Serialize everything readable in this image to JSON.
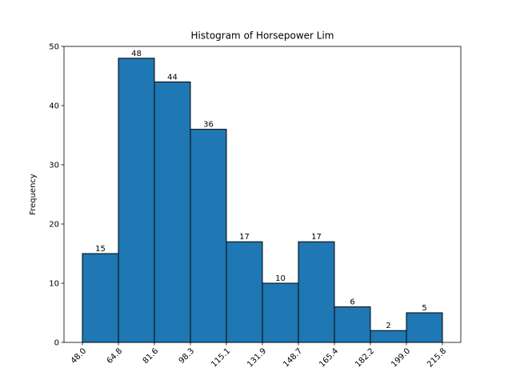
{
  "chart_data": {
    "type": "bar",
    "title": "Histogram of Horsepower Lim",
    "xlabel": "",
    "ylabel": "Frequency",
    "bin_edges": [
      "48.0",
      "64.8",
      "81.6",
      "98.3",
      "115.1",
      "131.9",
      "148.7",
      "165.4",
      "182.2",
      "199.0",
      "215.8"
    ],
    "values": [
      15,
      48,
      44,
      36,
      17,
      10,
      17,
      6,
      2,
      5
    ],
    "data_labels": [
      "15",
      "48",
      "44",
      "36",
      "17",
      "10",
      "17",
      "6",
      "2",
      "5"
    ],
    "ylim": [
      0,
      50
    ],
    "yticks": [
      "0",
      "10",
      "20",
      "30",
      "40",
      "50"
    ],
    "grid": false,
    "colors": {
      "bar": "#1f77b4",
      "edge": "#000000"
    }
  }
}
